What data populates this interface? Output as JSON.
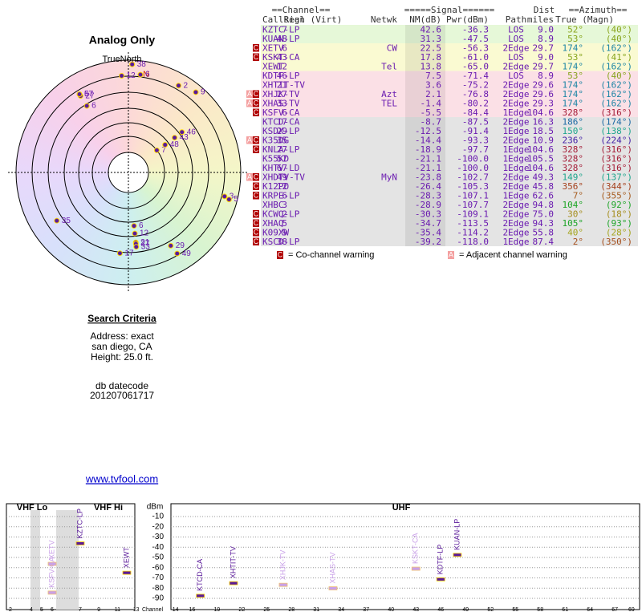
{
  "title": "Analog Only",
  "compass": {
    "label": "TrueNorth",
    "north": "N"
  },
  "search": {
    "heading": "Search Criteria",
    "lines": [
      "Address: exact",
      "san diego, CA",
      "Height: 25.0 ft."
    ],
    "datecode_label": "db datecode",
    "datecode": "201207061717"
  },
  "link": "www.tvfool.com",
  "table": {
    "group_headers": [
      "==Channel==",
      "=====Signal======",
      "Dist",
      "==Azimuth=="
    ],
    "columns": [
      "Callsign",
      "Real (Virt)",
      "Netwk",
      "NM(dB)",
      "Pwr(dBm)",
      "Path",
      "miles",
      "True (Magn)"
    ],
    "rows": [
      {
        "callsign": "KZTC-LP",
        "real": "7",
        "nm": "42.6",
        "pwr": "-36.3",
        "path": "LOS",
        "dist": "9.0",
        "true": "52°",
        "magn": "(40°)"
      },
      {
        "callsign": "KUAN-LP",
        "real": "48",
        "nm": "31.3",
        "pwr": "-47.5",
        "path": "LOS",
        "dist": "8.9",
        "true": "53°",
        "magn": "(40°)"
      },
      {
        "callsign": "XETV",
        "real": "6",
        "netwk": "CW",
        "nm": "22.5",
        "pwr": "-56.3",
        "path": "2Edge",
        "dist": "29.7",
        "true": "174°",
        "magn": "(162°)",
        "warnings": [
          "C"
        ]
      },
      {
        "callsign": "KSKT-CA",
        "real": "43",
        "nm": "17.8",
        "pwr": "-61.0",
        "path": "LOS",
        "dist": "9.0",
        "true": "53°",
        "magn": "(41°)",
        "warnings": [
          "C"
        ]
      },
      {
        "callsign": "XEWT",
        "real": "12",
        "netwk": "Tel",
        "nm": "13.8",
        "pwr": "-65.0",
        "path": "2Edge",
        "dist": "29.7",
        "true": "174°",
        "magn": "(162°)"
      },
      {
        "callsign": "KDTF-LP",
        "real": "46",
        "nm": "7.5",
        "pwr": "-71.4",
        "path": "LOS",
        "dist": "8.9",
        "true": "53°",
        "magn": "(40°)"
      },
      {
        "callsign": "XHTIT-TV",
        "real": "21",
        "nm": "3.6",
        "pwr": "-75.2",
        "path": "2Edge",
        "dist": "29.6",
        "true": "174°",
        "magn": "(162°)"
      },
      {
        "callsign": "XHJK-TV",
        "real": "27",
        "netwk": "Azt",
        "nm": "2.1",
        "pwr": "-76.8",
        "path": "2Edge",
        "dist": "29.6",
        "true": "174°",
        "magn": "(162°)",
        "warnings": [
          "A",
          "C"
        ]
      },
      {
        "callsign": "XHAS-TV",
        "real": "33",
        "netwk": "TEL",
        "nm": "-1.4",
        "pwr": "-80.2",
        "path": "2Edge",
        "dist": "29.3",
        "true": "174°",
        "magn": "(162°)",
        "warnings": [
          "A",
          "C"
        ]
      },
      {
        "callsign": "KSFV-CA",
        "real": "6",
        "nm": "-5.5",
        "pwr": "-84.4",
        "path": "1Edge",
        "dist": "104.6",
        "true": "328°",
        "magn": "(316°)",
        "warnings": [
          "C"
        ]
      },
      {
        "callsign": "KTCD-CA",
        "real": "17",
        "nm": "-8.7",
        "pwr": "-87.5",
        "path": "2Edge",
        "dist": "16.3",
        "true": "186°",
        "magn": "(174°)"
      },
      {
        "callsign": "KSDX-LP",
        "real": "29",
        "nm": "-12.5",
        "pwr": "-91.4",
        "path": "1Edge",
        "dist": "18.5",
        "true": "150°",
        "magn": "(138°)"
      },
      {
        "callsign": "K35DG",
        "real": "35",
        "nm": "-14.4",
        "pwr": "-93.3",
        "path": "2Edge",
        "dist": "10.9",
        "true": "236°",
        "magn": "(224°)",
        "warnings": [
          "A",
          "C"
        ]
      },
      {
        "callsign": "KNLA-LP",
        "real": "27",
        "nm": "-18.9",
        "pwr": "-97.7",
        "path": "1Edge",
        "dist": "104.6",
        "true": "328°",
        "magn": "(316°)",
        "warnings": [
          "C"
        ]
      },
      {
        "callsign": "K55KD",
        "real": "57",
        "nm": "-21.1",
        "pwr": "-100.0",
        "path": "1Edge",
        "dist": "105.5",
        "true": "328°",
        "magn": "(316°)"
      },
      {
        "callsign": "KHTV-LD",
        "real": "67",
        "nm": "-21.1",
        "pwr": "-100.0",
        "path": "1Edge",
        "dist": "104.6",
        "true": "328°",
        "magn": "(316°)"
      },
      {
        "callsign": "XHDTV-TV",
        "real": "49",
        "netwk": "MyN",
        "nm": "-23.8",
        "pwr": "-102.7",
        "path": "2Edge",
        "dist": "49.3",
        "true": "149°",
        "magn": "(137°)",
        "warnings": [
          "A",
          "C"
        ]
      },
      {
        "callsign": "K12PO",
        "real": "12",
        "nm": "-26.4",
        "pwr": "-105.3",
        "path": "2Edge",
        "dist": "45.8",
        "true": "356°",
        "magn": "(344°)",
        "warnings": [
          "C"
        ]
      },
      {
        "callsign": "KRPE-LP",
        "real": "6",
        "nm": "-28.3",
        "pwr": "-107.1",
        "path": "1Edge",
        "dist": "62.6",
        "true": "7°",
        "magn": "(355°)",
        "warnings": [
          "C"
        ]
      },
      {
        "callsign": "XHBC",
        "real": "3",
        "nm": "-28.9",
        "pwr": "-107.7",
        "path": "2Edge",
        "dist": "94.8",
        "true": "104°",
        "magn": "(92°)"
      },
      {
        "callsign": "KCWQ-LP",
        "real": "2",
        "nm": "-30.3",
        "pwr": "-109.1",
        "path": "2Edge",
        "dist": "75.0",
        "true": "30°",
        "magn": "(18°)",
        "warnings": [
          "C"
        ]
      },
      {
        "callsign": "XHAQ",
        "real": "5",
        "nm": "-34.7",
        "pwr": "-113.5",
        "path": "2Edge",
        "dist": "94.3",
        "true": "105°",
        "magn": "(93°)",
        "warnings": [
          "C"
        ]
      },
      {
        "callsign": "K09XW",
        "real": "9",
        "nm": "-35.4",
        "pwr": "-114.2",
        "path": "2Edge",
        "dist": "55.8",
        "true": "40°",
        "magn": "(28°)",
        "warnings": [
          "C"
        ]
      },
      {
        "callsign": "KSCD-LP",
        "real": "38",
        "nm": "-39.2",
        "pwr": "-118.0",
        "path": "1Edge",
        "dist": "87.4",
        "true": "2°",
        "magn": "(350°)",
        "warnings": [
          "C"
        ]
      }
    ]
  },
  "legend": [
    {
      "icon": "C",
      "text": "= Co-channel warning"
    },
    {
      "icon": "A",
      "text": "= Adjacent channel warning"
    }
  ],
  "spectrum": {
    "bands": [
      "VHF Lo",
      "VHF Hi",
      "UHF"
    ],
    "unit": "dBm",
    "axis_label": "Channel",
    "dbm_ticks": [
      -10,
      -20,
      -30,
      -40,
      -50,
      -60,
      -70,
      -80,
      -90
    ],
    "channels": {
      "vhf_lo": [
        2,
        4,
        5,
        6
      ],
      "vhf_hi": [
        7,
        9,
        11,
        13
      ],
      "uhf": [
        14,
        16,
        19,
        22,
        25,
        28,
        31,
        34,
        37,
        40,
        43,
        46,
        49,
        52,
        55,
        58,
        61,
        64,
        67,
        69
      ]
    }
  }
}
